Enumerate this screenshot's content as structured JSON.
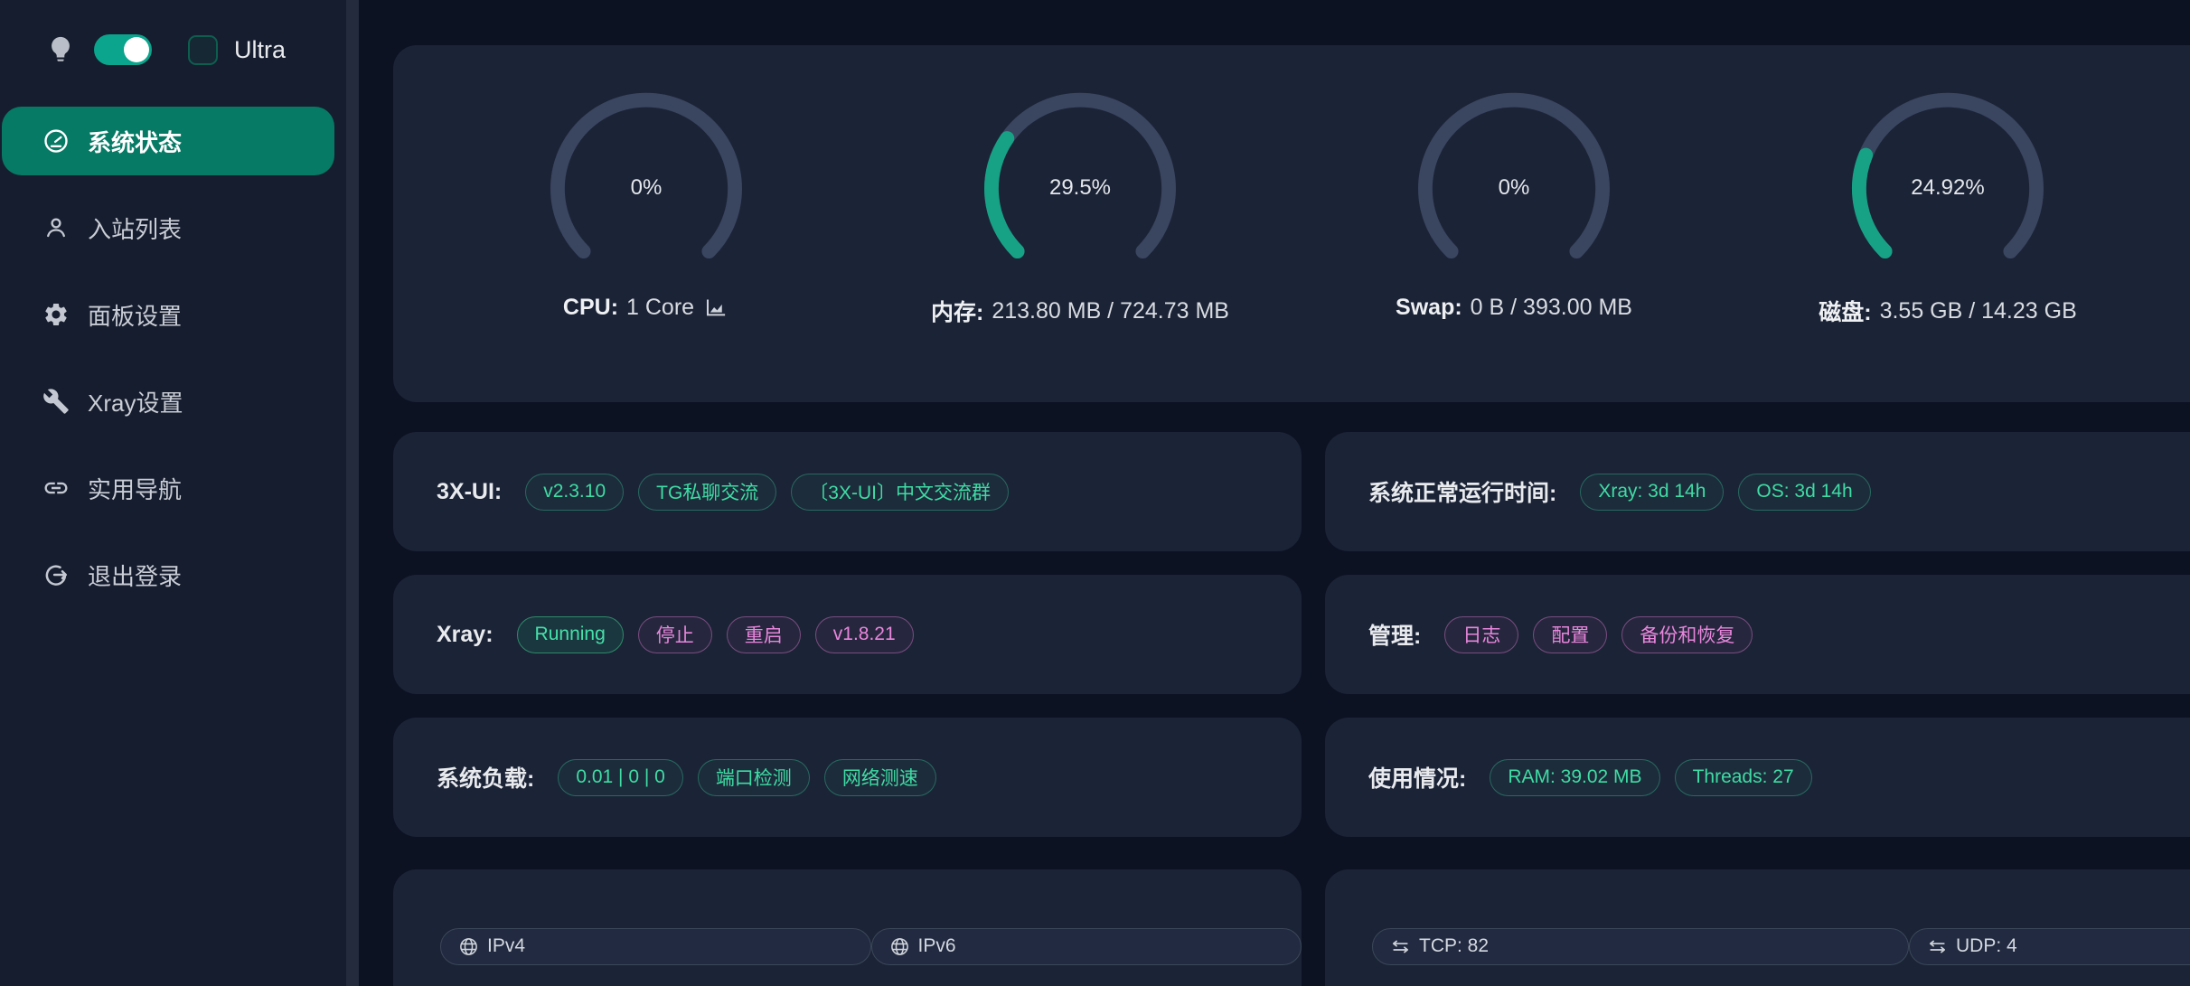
{
  "colors": {
    "page_bg": "#0c1222",
    "card_bg": "#1b2336",
    "sidebar_bg": "#161d2e",
    "gauge_fill": "#17a286",
    "gauge_track": "#3a4560",
    "active_menu": "#067a65",
    "toggle_on": "#0aa58c",
    "badge_green": "#3fdca4",
    "badge_pink": "#e886dc"
  },
  "sidebar": {
    "theme_toggle_on": true,
    "ultra_label": "Ultra",
    "items": [
      {
        "label": "系统状态",
        "icon": "dashboard-icon",
        "active": true
      },
      {
        "label": "入站列表",
        "icon": "user-icon",
        "active": false
      },
      {
        "label": "面板设置",
        "icon": "gear-icon",
        "active": false
      },
      {
        "label": "Xray设置",
        "icon": "wrench-icon",
        "active": false
      },
      {
        "label": "实用导航",
        "icon": "link-icon",
        "active": false
      },
      {
        "label": "退出登录",
        "icon": "logout-icon",
        "active": false
      }
    ]
  },
  "gauges": [
    {
      "percent": 0,
      "percent_label": "0%",
      "label_name": "CPU:",
      "label_value": "1 Core",
      "has_chart_icon": true
    },
    {
      "percent": 29.5,
      "percent_label": "29.5%",
      "label_name": "内存:",
      "label_value": "213.80 MB / 724.73 MB",
      "has_chart_icon": false
    },
    {
      "percent": 0,
      "percent_label": "0%",
      "label_name": "Swap:",
      "label_value": "0 B / 393.00 MB",
      "has_chart_icon": false
    },
    {
      "percent": 24.92,
      "percent_label": "24.92%",
      "label_name": "磁盘:",
      "label_value": "3.55 GB / 14.23 GB",
      "has_chart_icon": false
    }
  ],
  "cards": {
    "xui": {
      "label": "3X-UI:",
      "badges": [
        {
          "text": "v2.3.10"
        },
        {
          "text": "TG私聊交流"
        },
        {
          "text": "〔3X-UI〕中文交流群"
        }
      ]
    },
    "uptime": {
      "label": "系统正常运行时间:",
      "badges": [
        {
          "text": "Xray: 3d 14h"
        },
        {
          "text": "OS: 3d 14h"
        }
      ]
    },
    "xray": {
      "label": "Xray:",
      "badges": [
        {
          "text": "Running"
        },
        {
          "text": "停止"
        },
        {
          "text": "重启"
        },
        {
          "text": "v1.8.21"
        }
      ]
    },
    "admin": {
      "label": "管理:",
      "badges": [
        {
          "text": "日志"
        },
        {
          "text": "配置"
        },
        {
          "text": "备份和恢复"
        }
      ]
    },
    "load": {
      "label": "系统负载:",
      "badges": [
        {
          "text": "0.01 | 0 | 0"
        },
        {
          "text": "端口检测"
        },
        {
          "text": "网络测速"
        }
      ]
    },
    "usage": {
      "label": "使用情况:",
      "badges": [
        {
          "text": "RAM: 39.02 MB"
        },
        {
          "text": "Threads: 27"
        }
      ]
    },
    "ip": {
      "badges": [
        {
          "text": "IPv4"
        },
        {
          "text": "IPv6"
        }
      ]
    },
    "net": {
      "badges": [
        {
          "text": "TCP: 82"
        },
        {
          "text": "UDP: 4"
        }
      ]
    }
  }
}
